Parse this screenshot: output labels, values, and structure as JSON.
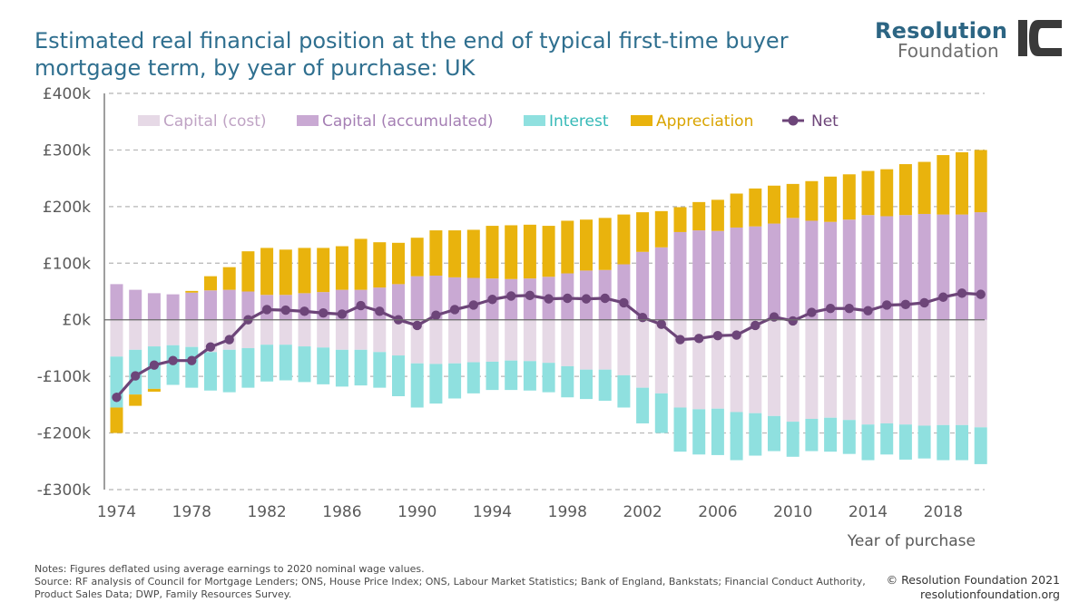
{
  "header": {
    "title": "Estimated real financial position at the end of typical first-time buyer mortgage term, by year of purchase: UK",
    "brand_line1": "Resolution",
    "brand_line2": "Foundation",
    "logo_mark": "IC"
  },
  "footer": {
    "notes": "Notes: Figures deflated using average earnings to 2020 nominal wage values.",
    "source": "Source: RF analysis of Council for Mortgage Lenders; ONS, House Price Index; ONS, Labour Market Statistics; Bank of England, Bankstats; Financial Conduct Authority, Product Sales Data; DWP, Family Resources Survey.",
    "copyright": "© Resolution Foundation 2021",
    "website": "resolutionfoundation.org"
  },
  "colors": {
    "capital_cost": "#e6d9e6",
    "capital_accumulated": "#c9a9d3",
    "interest": "#8fe0df",
    "appreciation": "#e9b30d",
    "net": "#6d4579",
    "grid": "#b5b5b5",
    "title": "#2f6f8f"
  },
  "chart_data": {
    "type": "bar",
    "stacked": true,
    "xlabel": "Year of purchase",
    "ylabel": "",
    "ylim": [
      -300,
      400
    ],
    "yticks": [
      400,
      300,
      200,
      100,
      0,
      -100,
      -200,
      -300
    ],
    "ytick_labels": [
      "£400k",
      "£300k",
      "£200k",
      "£100k",
      "£0k",
      "-£100k",
      "-£200k",
      "-£300k"
    ],
    "xtick_labels": [
      "1974",
      "1978",
      "1982",
      "1986",
      "1990",
      "1994",
      "1998",
      "2002",
      "2006",
      "2010",
      "2014",
      "2018"
    ],
    "grid": "horizontal dashed",
    "legend_position": "top-left",
    "categories": [
      1974,
      1975,
      1976,
      1977,
      1978,
      1979,
      1980,
      1981,
      1982,
      1983,
      1984,
      1985,
      1986,
      1987,
      1988,
      1989,
      1990,
      1991,
      1992,
      1993,
      1994,
      1995,
      1996,
      1997,
      1998,
      1999,
      2000,
      2001,
      2002,
      2003,
      2004,
      2005,
      2006,
      2007,
      2008,
      2009,
      2010,
      2011,
      2012,
      2013,
      2014,
      2015,
      2016,
      2017,
      2018,
      2019,
      2020
    ],
    "series": [
      {
        "name": "Capital (cost)",
        "kind": "bar",
        "color_key": "capital_cost",
        "values": [
          -65,
          -53,
          -47,
          -45,
          -48,
          -57,
          -53,
          -50,
          -44,
          -44,
          -47,
          -49,
          -53,
          -53,
          -57,
          -63,
          -77,
          -78,
          -77,
          -75,
          -74,
          -72,
          -73,
          -76,
          -82,
          -88,
          -88,
          -98,
          -120,
          -130,
          -155,
          -158,
          -157,
          -163,
          -165,
          -170,
          -180,
          -175,
          -173,
          -177,
          -185,
          -183,
          -185,
          -187,
          -186,
          -186,
          -190
        ]
      },
      {
        "name": "Capital (accumulated)",
        "kind": "bar",
        "color_key": "capital_accumulated",
        "values": [
          63,
          53,
          47,
          45,
          48,
          52,
          53,
          50,
          44,
          44,
          47,
          49,
          53,
          53,
          57,
          63,
          77,
          78,
          75,
          74,
          73,
          72,
          73,
          76,
          82,
          87,
          88,
          98,
          120,
          128,
          155,
          158,
          157,
          163,
          165,
          170,
          180,
          175,
          173,
          177,
          185,
          183,
          185,
          187,
          186,
          186,
          190
        ]
      },
      {
        "name": "Interest",
        "kind": "bar",
        "color_key": "interest",
        "values": [
          -90,
          -79,
          -75,
          -70,
          -72,
          -68,
          -75,
          -70,
          -65,
          -63,
          -63,
          -65,
          -65,
          -63,
          -63,
          -72,
          -78,
          -70,
          -62,
          -55,
          -50,
          -52,
          -52,
          -52,
          -55,
          -52,
          -55,
          -57,
          -63,
          -70,
          -78,
          -80,
          -82,
          -85,
          -75,
          -62,
          -62,
          -57,
          -60,
          -60,
          -63,
          -55,
          -62,
          -58,
          -62,
          -62,
          -65
        ]
      },
      {
        "name": "Appreciation",
        "kind": "bar",
        "color_key": "appreciation",
        "values": [
          -45,
          -20,
          -5,
          0,
          3,
          25,
          40,
          71,
          83,
          80,
          80,
          78,
          77,
          90,
          80,
          73,
          68,
          80,
          83,
          85,
          93,
          95,
          95,
          90,
          93,
          90,
          92,
          88,
          70,
          64,
          44,
          50,
          55,
          60,
          67,
          67,
          60,
          70,
          80,
          80,
          78,
          83,
          90,
          92,
          105,
          110,
          110
        ]
      },
      {
        "name": "Net",
        "kind": "line",
        "color_key": "net",
        "values": [
          -137,
          -99,
          -80,
          -72,
          -72,
          -48,
          -35,
          0,
          18,
          17,
          15,
          12,
          10,
          25,
          15,
          0,
          -10,
          8,
          18,
          26,
          36,
          42,
          43,
          37,
          38,
          37,
          38,
          30,
          4,
          -8,
          -35,
          -33,
          -28,
          -27,
          -10,
          5,
          -2,
          13,
          20,
          20,
          16,
          26,
          27,
          30,
          40,
          47,
          45
        ]
      }
    ]
  }
}
